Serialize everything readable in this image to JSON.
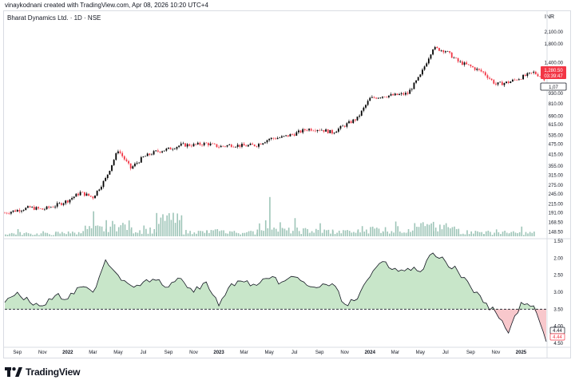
{
  "header": {
    "attribution": "vinaykodnani created with TradingView.com, Apr 08, 2026 10:20 UTC+4",
    "symbol": "Bharat Dynamics Ltd. · 1D · NSE",
    "currency": "INR"
  },
  "branding": {
    "logo_text": "TradingView"
  },
  "price_tags": {
    "high_tag": "1,280.50",
    "countdown": "03:39:47",
    "last_tag": "1,07"
  },
  "indicator_tags": {
    "value_a": "4.44",
    "value_b": "4.44"
  },
  "colors": {
    "up": "#000000",
    "down": "#f23645",
    "volume": "#9ec5b8",
    "fill_above": "#c8e6c9",
    "fill_below": "#f8c8cc",
    "line": "#131722",
    "tag_red": "#f23645"
  },
  "chart_data": [
    {
      "type": "line",
      "title": "Bharat Dynamics Ltd. · 1D · NSE",
      "description_series": "daily candlesticks, log price scale",
      "y_scale": "log",
      "ylabel": "INR",
      "y_ticks": [
        "2,100.00",
        "1,800.00",
        "1,400.00",
        "930.00",
        "810.00",
        "690.00",
        "615.00",
        "535.00",
        "475.00",
        "415.00",
        "355.00",
        "315.00",
        "275.00",
        "245.00",
        "215.00",
        "191.00",
        "168.50",
        "148.50"
      ],
      "x_ticks": [
        "Sep",
        "Nov",
        "2022",
        "Mar",
        "May",
        "Jul",
        "Sep",
        "Nov",
        "2023",
        "Mar",
        "May",
        "Jul",
        "Sep",
        "Nov",
        "2024",
        "Mar",
        "May",
        "Jul",
        "Sep",
        "Nov",
        "2025"
      ],
      "series": [
        {
          "values_note": "approximate close by month",
          "x": [
            "2021-08",
            "2021-09",
            "2021-10",
            "2021-11",
            "2021-12",
            "2022-01",
            "2022-02",
            "2022-03",
            "2022-04",
            "2022-05",
            "2022-06",
            "2022-07",
            "2022-08",
            "2022-09",
            "2022-10",
            "2022-11",
            "2022-12",
            "2023-01",
            "2023-02",
            "2023-03",
            "2023-04",
            "2023-05",
            "2023-06",
            "2023-07",
            "2023-08",
            "2023-09",
            "2023-10",
            "2023-11",
            "2023-12",
            "2024-01",
            "2024-02",
            "2024-03",
            "2024-04",
            "2024-05",
            "2024-06",
            "2024-07",
            "2024-08",
            "2024-09",
            "2024-10",
            "2024-11",
            "2024-12",
            "2025-01",
            "2025-02",
            "2025-03"
          ],
          "values": [
            191,
            198,
            205,
            200,
            210,
            225,
            250,
            235,
            300,
            440,
            345,
            400,
            430,
            445,
            470,
            470,
            480,
            460,
            470,
            465,
            470,
            510,
            520,
            545,
            580,
            580,
            555,
            610,
            670,
            870,
            900,
            910,
            930,
            1180,
            1700,
            1640,
            1420,
            1330,
            1230,
            1050,
            1080,
            1150,
            1230,
            1120
          ]
        }
      ],
      "volume": {
        "x": [
          "2021-09",
          "2021-11",
          "2022-01",
          "2022-03",
          "2022-05",
          "2022-07",
          "2022-09",
          "2022-11",
          "2023-01",
          "2023-03",
          "2023-05",
          "2023-07",
          "2023-09",
          "2023-11",
          "2024-01",
          "2024-03",
          "2024-05",
          "2024-07",
          "2024-09",
          "2024-11",
          "2025-01"
        ],
        "values": [
          0.6,
          0.5,
          0.7,
          1.6,
          2.2,
          1.3,
          3.2,
          0.9,
          1.0,
          0.8,
          2.5,
          1.2,
          1.1,
          0.9,
          1.5,
          1.4,
          2.0,
          1.6,
          0.9,
          0.8,
          0.7
        ]
      }
    },
    {
      "type": "area",
      "y_scale": "linear",
      "y_inverted": true,
      "y_ticks": [
        "1.50",
        "2.00",
        "2.50",
        "3.00",
        "3.50",
        "4.00",
        "4.50"
      ],
      "ylim": [
        1.5,
        4.5
      ],
      "baseline": 3.5,
      "x": [
        "2021-08",
        "2021-09",
        "2021-10",
        "2021-11",
        "2021-12",
        "2022-01",
        "2022-02",
        "2022-03",
        "2022-04",
        "2022-05",
        "2022-06",
        "2022-07",
        "2022-08",
        "2022-09",
        "2022-10",
        "2022-11",
        "2022-12",
        "2023-01",
        "2023-02",
        "2023-03",
        "2023-04",
        "2023-05",
        "2023-06",
        "2023-07",
        "2023-08",
        "2023-09",
        "2023-10",
        "2023-11",
        "2023-12",
        "2024-01",
        "2024-02",
        "2024-03",
        "2024-04",
        "2024-05",
        "2024-06",
        "2024-07",
        "2024-08",
        "2024-09",
        "2024-10",
        "2024-11",
        "2024-12",
        "2025-01",
        "2025-02",
        "2025-03"
      ],
      "values": [
        3.3,
        3.0,
        3.3,
        3.4,
        3.1,
        3.2,
        2.85,
        3.0,
        2.05,
        2.5,
        2.8,
        2.7,
        2.65,
        2.85,
        2.6,
        3.0,
        2.7,
        3.4,
        2.75,
        2.7,
        2.8,
        2.6,
        2.7,
        2.55,
        2.8,
        2.85,
        2.75,
        3.35,
        3.2,
        2.55,
        2.1,
        2.3,
        2.3,
        2.4,
        1.85,
        2.1,
        2.4,
        2.85,
        3.3,
        3.6,
        4.2,
        3.3,
        3.4,
        4.45
      ]
    }
  ]
}
